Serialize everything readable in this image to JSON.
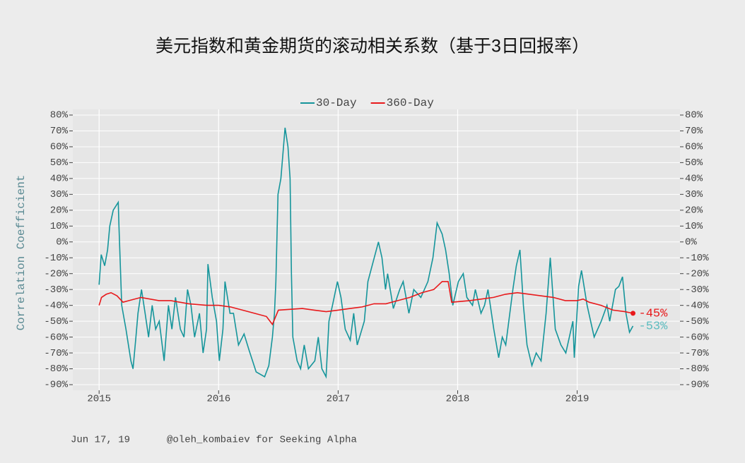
{
  "chart_data": {
    "type": "line",
    "title": "美元指数和黄金期货的滚动相关系数（基于3日回报率）",
    "y_label": "Correlation Coefficient",
    "footer_left": "Jun 17, 19",
    "footer_right": "@oleh_kombaiev for Seeking Alpha",
    "xlim": [
      2014.78,
      2019.86
    ],
    "xticks": [
      2015,
      2016,
      2017,
      2018,
      2019
    ],
    "ylim": [
      -90,
      80
    ],
    "yticks": [
      {
        "value": 80,
        "label": "80%"
      },
      {
        "value": 70,
        "label": "70%"
      },
      {
        "value": 60,
        "label": "60%"
      },
      {
        "value": 50,
        "label": "50%"
      },
      {
        "value": 40,
        "label": "40%"
      },
      {
        "value": 30,
        "label": "30%"
      },
      {
        "value": 20,
        "label": "20%"
      },
      {
        "value": 10,
        "label": "10%"
      },
      {
        "value": 0,
        "label": "0%"
      },
      {
        "value": -10,
        "label": "-10%"
      },
      {
        "value": -20,
        "label": "-20%"
      },
      {
        "value": -30,
        "label": "-30%"
      },
      {
        "value": -40,
        "label": "-40%"
      },
      {
        "value": -50,
        "label": "-50%"
      },
      {
        "value": -60,
        "label": "-60%"
      },
      {
        "value": -70,
        "label": "-70%"
      },
      {
        "value": -80,
        "label": "-80%"
      },
      {
        "value": -90,
        "label": "-90%"
      }
    ],
    "grid": true,
    "legend": "top",
    "series": [
      {
        "name": "30-Day",
        "color": "#15959b",
        "x": [
          2015.0,
          2015.018,
          2015.047,
          2015.071,
          2015.089,
          2015.118,
          2015.16,
          2015.166,
          2015.189,
          2015.225,
          2015.266,
          2015.284,
          2015.308,
          2015.325,
          2015.355,
          2015.385,
          2015.414,
          2015.444,
          2015.473,
          2015.503,
          2015.544,
          2015.58,
          2015.609,
          2015.639,
          2015.68,
          2015.71,
          2015.74,
          2015.769,
          2015.799,
          2015.84,
          2015.87,
          2015.899,
          2015.911,
          2015.947,
          2015.982,
          2016.006,
          2016.036,
          2016.053,
          2016.095,
          2016.124,
          2016.166,
          2016.213,
          2016.254,
          2016.314,
          2016.385,
          2016.42,
          2016.45,
          2016.467,
          2016.479,
          2016.497,
          2016.521,
          2016.556,
          2016.58,
          2016.598,
          2016.609,
          2016.621,
          2016.657,
          2016.686,
          2016.716,
          2016.751,
          2016.805,
          2016.834,
          2016.864,
          2016.899,
          2016.923,
          2016.953,
          2016.994,
          2017.024,
          2017.059,
          2017.101,
          2017.13,
          2017.16,
          2017.219,
          2017.249,
          2017.337,
          2017.367,
          2017.396,
          2017.414,
          2017.462,
          2017.515,
          2017.544,
          2017.592,
          2017.633,
          2017.692,
          2017.751,
          2017.793,
          2017.828,
          2017.87,
          2017.899,
          2017.929,
          2017.959,
          2018.006,
          2018.047,
          2018.077,
          2018.124,
          2018.148,
          2018.195,
          2018.225,
          2018.254,
          2018.302,
          2018.343,
          2018.373,
          2018.402,
          2018.462,
          2018.491,
          2018.521,
          2018.55,
          2018.58,
          2018.621,
          2018.657,
          2018.698,
          2018.74,
          2018.775,
          2018.817,
          2018.864,
          2018.905,
          2018.964,
          2018.976,
          2019.012,
          2019.036,
          2019.083,
          2019.142,
          2019.201,
          2019.249,
          2019.272,
          2019.32,
          2019.349,
          2019.379,
          2019.408,
          2019.438,
          2019.467
        ],
        "values": [
          -27,
          -8,
          -15,
          -5,
          10,
          20,
          25,
          10,
          -40,
          -55,
          -75,
          -80,
          -60,
          -45,
          -30,
          -45,
          -60,
          -40,
          -55,
          -50,
          -75,
          -40,
          -55,
          -35,
          -55,
          -60,
          -30,
          -40,
          -60,
          -45,
          -70,
          -55,
          -14,
          -35,
          -50,
          -75,
          -55,
          -25,
          -45,
          -45,
          -65,
          -58,
          -68,
          -82,
          -85,
          -78,
          -60,
          -45,
          -25,
          30,
          40,
          72,
          60,
          40,
          -20,
          -60,
          -75,
          -80,
          -65,
          -80,
          -75,
          -60,
          -80,
          -85,
          -50,
          -40,
          -25,
          -35,
          -55,
          -62,
          -45,
          -65,
          -50,
          -25,
          0,
          -10,
          -30,
          -20,
          -42,
          -30,
          -25,
          -45,
          -30,
          -35,
          -25,
          -10,
          12,
          5,
          -5,
          -20,
          -40,
          -25,
          -20,
          -35,
          -40,
          -30,
          -45,
          -40,
          -30,
          -55,
          -73,
          -60,
          -65,
          -30,
          -15,
          -5,
          -40,
          -65,
          -78,
          -70,
          -75,
          -45,
          -10,
          -55,
          -65,
          -70,
          -50,
          -73,
          -28,
          -18,
          -40,
          -60,
          -50,
          -40,
          -50,
          -30,
          -28,
          -22,
          -45,
          -57,
          -53
        ]
      },
      {
        "name": "360-Day",
        "color": "#e8191b",
        "x": [
          2015.0,
          2015.02,
          2015.06,
          2015.1,
          2015.15,
          2015.2,
          2015.25,
          2015.35,
          2015.5,
          2015.6,
          2015.75,
          2015.9,
          2016.0,
          2016.1,
          2016.2,
          2016.3,
          2016.4,
          2016.45,
          2016.5,
          2016.7,
          2016.8,
          2016.9,
          2017.0,
          2017.1,
          2017.2,
          2017.3,
          2017.4,
          2017.5,
          2017.6,
          2017.7,
          2017.8,
          2017.87,
          2017.92,
          2017.95,
          2018.1,
          2018.2,
          2018.3,
          2018.4,
          2018.5,
          2018.6,
          2018.7,
          2018.8,
          2018.9,
          2019.0,
          2019.05,
          2019.1,
          2019.2,
          2019.3,
          2019.4,
          2019.467
        ],
        "values": [
          -40,
          -35,
          -33,
          -32,
          -34,
          -38,
          -37,
          -35,
          -37,
          -37,
          -39,
          -40,
          -40,
          -41,
          -43,
          -45,
          -47,
          -52,
          -43,
          -42,
          -43,
          -44,
          -43,
          -42,
          -41,
          -39,
          -39,
          -37,
          -35,
          -32,
          -30,
          -25,
          -25,
          -38,
          -37,
          -36,
          -35,
          -33,
          -32,
          -33,
          -34,
          -35,
          -37,
          -37,
          -36,
          -38,
          -40,
          -43,
          -44,
          -45
        ]
      }
    ],
    "annotations": [
      {
        "text": "-45%",
        "x": 2019.467,
        "y": -45,
        "color": "#e8191b"
      },
      {
        "text": "-53%",
        "x": 2019.467,
        "y": -53,
        "color": "#5bbcbf"
      }
    ]
  }
}
